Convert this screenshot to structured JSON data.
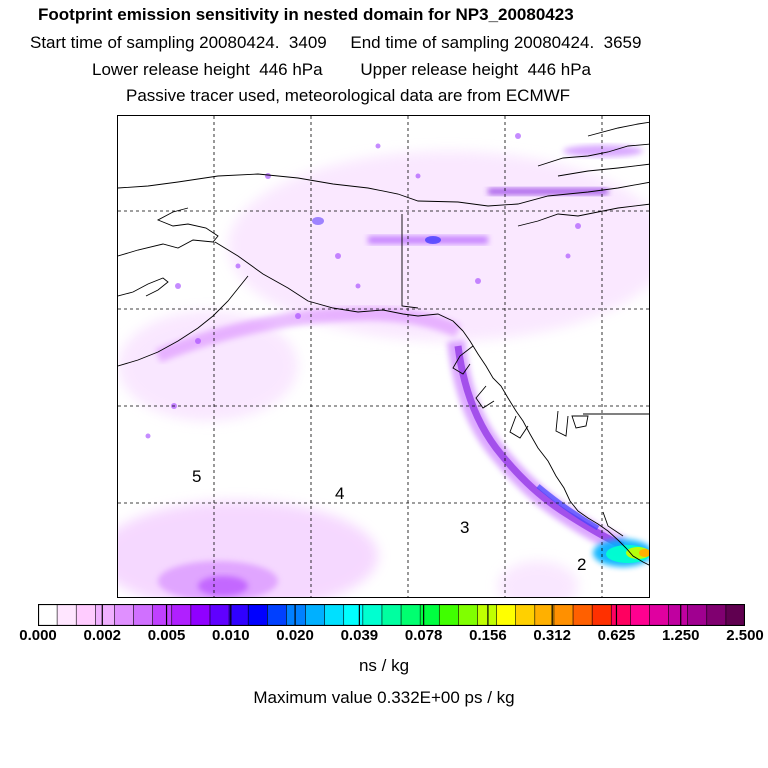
{
  "header": {
    "title": "Footprint emission sensitivity in nested domain for NP3_20080423",
    "line2": "Start time of sampling 20080424.  3409     End time of sampling 20080424.  3659",
    "line3": "Lower release height  446 hPa        Upper release height  446 hPa",
    "line4": "Passive tracer used, meteorological data are from ECMWF"
  },
  "map": {
    "point_labels": [
      "5",
      "4",
      "3",
      "2"
    ]
  },
  "colorbar": {
    "colors": [
      "#ffffff",
      "#ffe6ff",
      "#ffccff",
      "#f0b0ff",
      "#e090ff",
      "#d070ff",
      "#c040ff",
      "#b020ff",
      "#9000ff",
      "#6000ff",
      "#3000ff",
      "#0000ff",
      "#0040ff",
      "#0080ff",
      "#00b0ff",
      "#00e0ff",
      "#00ffff",
      "#00ffd0",
      "#00ffa0",
      "#00ff70",
      "#00ff40",
      "#40ff00",
      "#80ff00",
      "#c0ff00",
      "#ffff00",
      "#ffd000",
      "#ffb000",
      "#ff9000",
      "#ff6000",
      "#ff3000",
      "#ff0060",
      "#ff0090",
      "#e000a0",
      "#c000a0",
      "#a00090",
      "#800070",
      "#600050"
    ],
    "tick_labels": [
      "0.000",
      "0.002",
      "0.005",
      "0.010",
      "0.020",
      "0.039",
      "0.078",
      "0.156",
      "0.312",
      "0.625",
      "1.250",
      "2.500"
    ],
    "units": "ns / kg"
  },
  "footer": {
    "max_value": "Maximum value  0.332E+00 ps / kg"
  }
}
